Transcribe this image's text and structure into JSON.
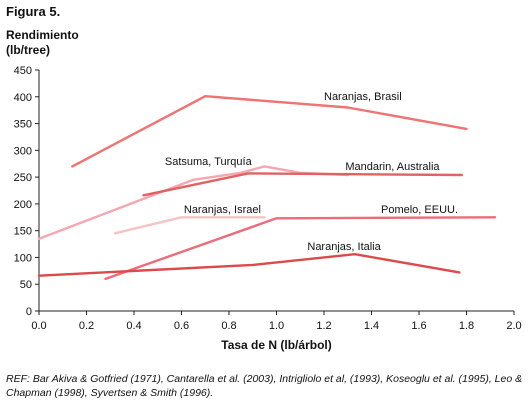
{
  "figure_label": "Figura 5.",
  "ylabel_line1": "Rendimiento",
  "ylabel_line2": "(lb/tree)",
  "reference": "REF: Bar Akiva & Gotfried (1971), Cantarella et al. (2003), Intrigliolo et al, (1993), Koseoglu et al. (1995), Leo & Chapman (1998), Syvertsen & Smith (1996).",
  "chart_data": {
    "type": "line",
    "xlabel": "Tasa de N (lb/árbol)",
    "ylabel": "Rendimiento (lb/tree)",
    "xlim": [
      0,
      2.0
    ],
    "ylim": [
      0,
      450
    ],
    "x_ticks": [
      "0.0",
      "0.2",
      "0.4",
      "0.6",
      "0.8",
      "1.0",
      "1.2",
      "1.4",
      "1.6",
      "1.8",
      "2.0"
    ],
    "y_ticks": [
      "0",
      "50",
      "100",
      "150",
      "200",
      "250",
      "300",
      "350",
      "400",
      "450"
    ],
    "grid": false,
    "series": [
      {
        "name": "Naranjas, Brasil",
        "color": "#ef7373",
        "points": [
          [
            0.14,
            270
          ],
          [
            0.7,
            401
          ],
          [
            1.3,
            380
          ],
          [
            1.8,
            340
          ]
        ],
        "label_anchor": [
          1.2,
          394
        ]
      },
      {
        "name": "Satsuma, Turquía",
        "color": "#f5a6b0",
        "points": [
          [
            0.0,
            135
          ],
          [
            0.65,
            245
          ],
          [
            0.85,
            258
          ],
          [
            0.95,
            270
          ],
          [
            1.1,
            258
          ],
          [
            1.3,
            254
          ]
        ],
        "label_anchor": [
          0.53,
          273
        ]
      },
      {
        "name": "Mandarin, Australia",
        "color": "#e06262",
        "points": [
          [
            0.44,
            216
          ],
          [
            0.88,
            257
          ],
          [
            1.78,
            254
          ]
        ],
        "label_anchor": [
          1.29,
          263
        ]
      },
      {
        "name": "Naranjas, Israel",
        "color": "#f4c4c4",
        "points": [
          [
            0.32,
            145
          ],
          [
            0.6,
            175
          ],
          [
            0.95,
            175
          ]
        ],
        "label_anchor": [
          0.61,
          183
        ]
      },
      {
        "name": "Pomelo, EEUU.",
        "color": "#ec6c78",
        "points": [
          [
            0.28,
            60
          ],
          [
            1.0,
            173
          ],
          [
            1.92,
            175
          ]
        ],
        "label_anchor": [
          1.44,
          183
        ]
      },
      {
        "name": "Naranjas, Italia",
        "color": "#dc4a4a",
        "points": [
          [
            0.0,
            66
          ],
          [
            0.9,
            86
          ],
          [
            1.33,
            106
          ],
          [
            1.77,
            72
          ]
        ],
        "label_anchor": [
          1.13,
          114
        ]
      }
    ]
  }
}
